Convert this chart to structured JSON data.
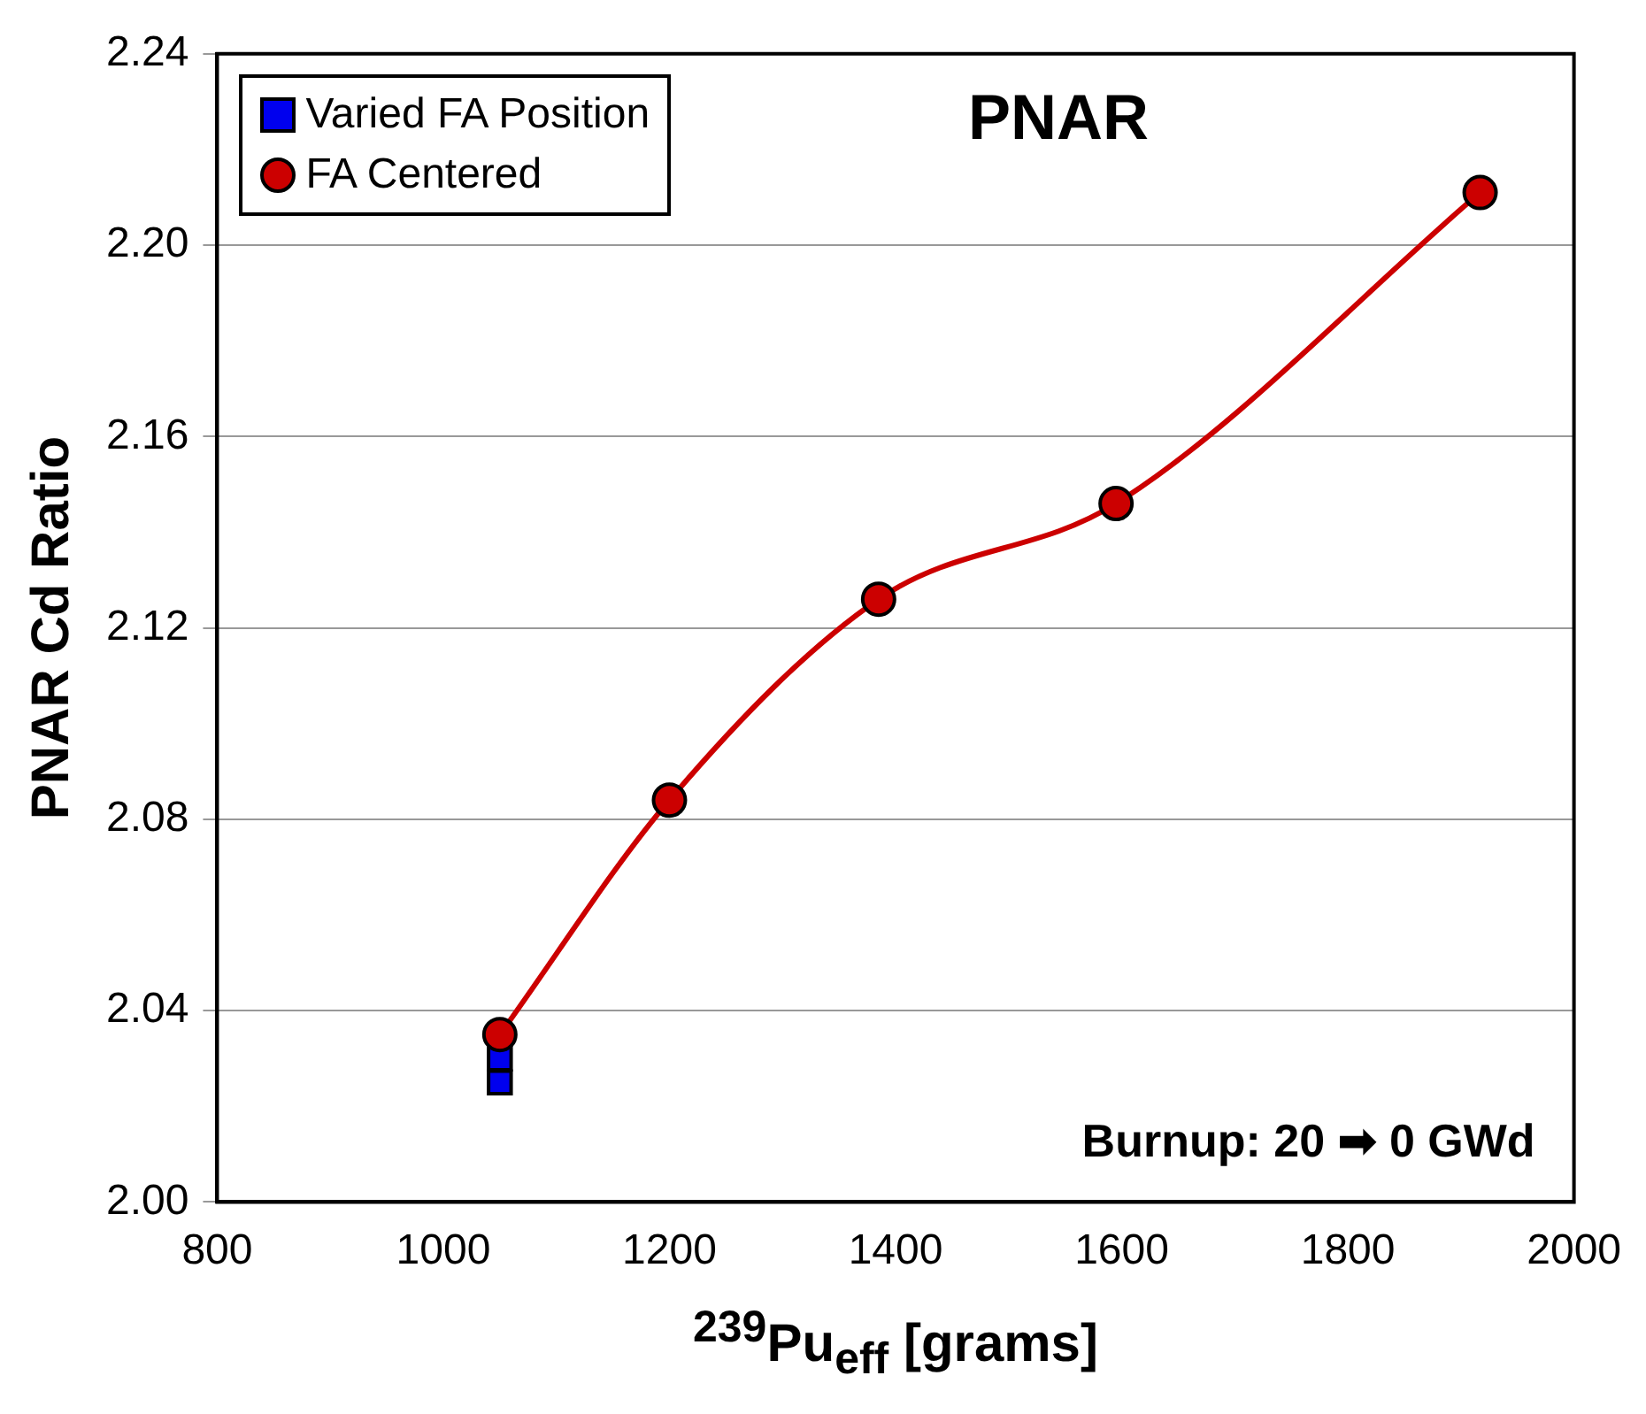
{
  "chart_data": {
    "type": "line",
    "title": "PNAR",
    "xlabel": "$^{239}$Pu$_{eff}$ [grams]",
    "ylabel": "PNAR Cd Ratio",
    "annotations": [
      "Burnup: 20 ➡ 0 GWd"
    ],
    "series": [
      {
        "name": "Varied FA Position",
        "type": "scatter",
        "color": "#0000ee",
        "marker": "square",
        "x": [
          1050,
          1050
        ],
        "values": [
          2.03,
          2.025
        ]
      },
      {
        "name": "FA Centered",
        "type": "line",
        "color": "#cc0000",
        "marker": "circle",
        "x": [
          1050,
          1200,
          1385,
          1595,
          1917
        ],
        "values": [
          2.035,
          2.084,
          2.126,
          2.146,
          2.211
        ]
      }
    ],
    "xlim": [
      800,
      2000
    ],
    "xticks": [
      800,
      1000,
      1200,
      1400,
      1600,
      1800,
      2000
    ],
    "ylim": [
      2.0,
      2.24
    ],
    "yticks": [
      {
        "value": 2.0,
        "label": "2.00"
      },
      {
        "value": 2.04,
        "label": "2.04"
      },
      {
        "value": 2.08,
        "label": "2.08"
      },
      {
        "value": 2.12,
        "label": "2.12"
      },
      {
        "value": 2.16,
        "label": "2.16"
      },
      {
        "value": 2.2,
        "label": "2.20"
      },
      {
        "value": 2.24,
        "label": "2.24"
      }
    ],
    "grid": "y",
    "legend": "top left"
  }
}
